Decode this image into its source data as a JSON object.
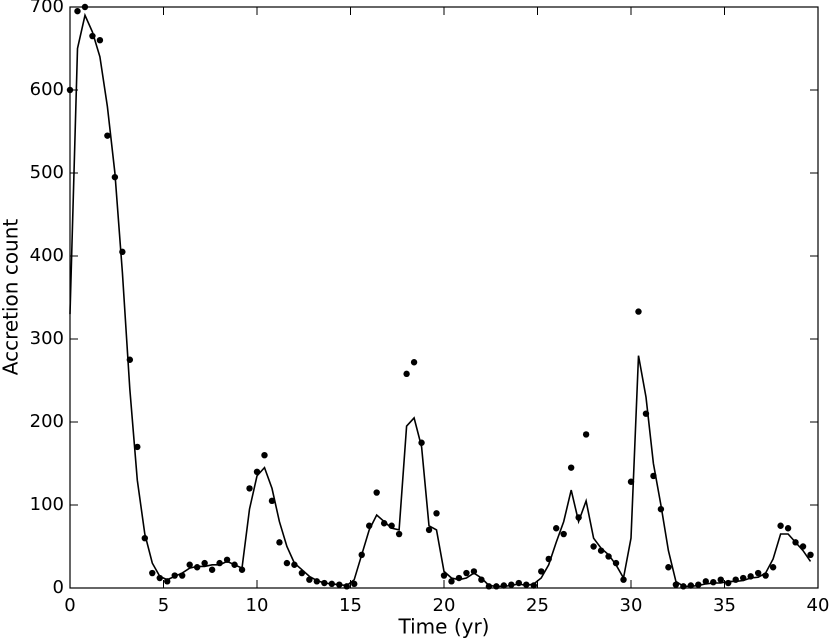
{
  "chart_data": {
    "type": "scatter",
    "xlabel": "Time (yr)",
    "ylabel": "Accretion count",
    "x": [
      0,
      0.4,
      0.8,
      1.2,
      1.6,
      2.0,
      2.4,
      2.8,
      3.2,
      3.6,
      4.0,
      4.4,
      4.8,
      5.2,
      5.6,
      6.0,
      6.4,
      6.8,
      7.2,
      7.6,
      8.0,
      8.4,
      8.8,
      9.2,
      9.6,
      10.0,
      10.4,
      10.8,
      11.2,
      11.6,
      12.0,
      12.4,
      12.8,
      13.2,
      13.6,
      14.0,
      14.4,
      14.8,
      15.2,
      15.6,
      16.0,
      16.4,
      16.8,
      17.2,
      17.6,
      18.0,
      18.4,
      18.8,
      19.2,
      19.6,
      20.0,
      20.4,
      20.8,
      21.2,
      21.6,
      22.0,
      22.4,
      22.8,
      23.2,
      23.6,
      24.0,
      24.4,
      24.8,
      25.2,
      25.6,
      26.0,
      26.4,
      26.8,
      27.2,
      27.6,
      28.0,
      28.4,
      28.8,
      29.2,
      29.6,
      30.0,
      30.4,
      30.8,
      31.2,
      31.6,
      32.0,
      32.4,
      32.8,
      33.2,
      33.6,
      34.0,
      34.4,
      34.8,
      35.2,
      35.6,
      36.0,
      36.4,
      36.8,
      37.2,
      37.6,
      38.0,
      38.4,
      38.8,
      39.2,
      39.6
    ],
    "series": [
      {
        "style": "dots",
        "color": "#000000",
        "values": [
          600,
          695,
          700,
          665,
          660,
          545,
          495,
          405,
          275,
          170,
          60,
          18,
          12,
          8,
          15,
          15,
          28,
          25,
          30,
          22,
          30,
          34,
          28,
          22,
          120,
          140,
          160,
          105,
          55,
          30,
          28,
          18,
          10,
          8,
          6,
          5,
          4,
          2,
          5,
          40,
          75,
          115,
          78,
          75,
          65,
          258,
          272,
          175,
          70,
          90,
          15,
          8,
          12,
          18,
          20,
          10,
          2,
          2,
          3,
          4,
          6,
          4,
          3,
          20,
          35,
          72,
          65,
          145,
          85,
          185,
          50,
          45,
          38,
          30,
          10,
          128,
          333,
          210,
          135,
          95,
          25,
          4,
          2,
          3,
          4,
          8,
          7,
          10,
          6,
          10,
          12,
          14,
          18,
          15,
          25,
          75,
          72,
          55,
          50,
          40
        ]
      },
      {
        "style": "line",
        "color": "#000000",
        "values": [
          330,
          650,
          690,
          670,
          640,
          580,
          500,
          380,
          240,
          130,
          65,
          30,
          14,
          10,
          14,
          18,
          24,
          26,
          26,
          28,
          28,
          32,
          28,
          24,
          95,
          135,
          145,
          120,
          80,
          50,
          30,
          22,
          14,
          9,
          6,
          5,
          4,
          3,
          10,
          40,
          70,
          88,
          80,
          72,
          70,
          195,
          205,
          170,
          75,
          70,
          20,
          12,
          10,
          12,
          18,
          12,
          3,
          2,
          2,
          3,
          5,
          3,
          5,
          12,
          28,
          55,
          80,
          118,
          80,
          105,
          60,
          48,
          40,
          28,
          12,
          60,
          280,
          230,
          150,
          100,
          45,
          8,
          2,
          2,
          3,
          5,
          6,
          6,
          8,
          8,
          9,
          12,
          13,
          18,
          35,
          65,
          65,
          55,
          45,
          32
        ]
      }
    ],
    "xlim": [
      0,
      40
    ],
    "xticks": [
      0,
      5,
      10,
      15,
      20,
      25,
      30,
      35,
      40
    ],
    "ylim": [
      0,
      700
    ],
    "yticks": [
      0,
      100,
      200,
      300,
      400,
      500,
      600,
      700
    ]
  }
}
